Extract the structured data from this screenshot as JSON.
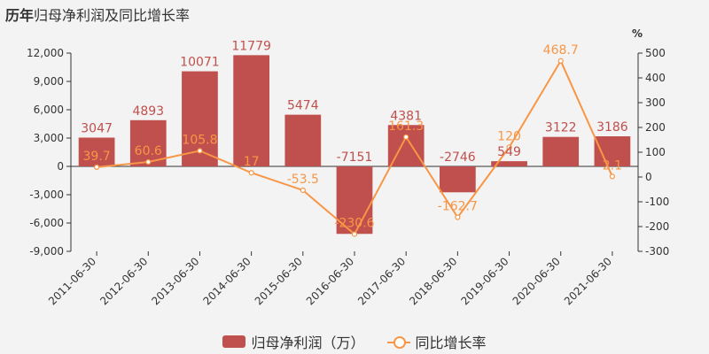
{
  "title": {
    "part1": "历年",
    "part2": "归母净利润",
    "part3": "及同比增长率"
  },
  "right_unit": "%",
  "legend": {
    "bar": "归母净利润（万）",
    "line": "同比增长率"
  },
  "colors": {
    "bar": "#c0504d",
    "line": "#f79646",
    "bar_label": "#c0504d",
    "line_label": "#f79646"
  },
  "chart_data": {
    "type": "bar",
    "categories": [
      "2011-06-30",
      "2012-06-30",
      "2013-06-30",
      "2014-06-30",
      "2015-06-30",
      "2016-06-30",
      "2017-06-30",
      "2018-06-30",
      "2019-06-30",
      "2020-06-30",
      "2021-06-30"
    ],
    "series": [
      {
        "name": "归母净利润（万）",
        "type": "bar",
        "axis": "left",
        "values": [
          3047,
          4893,
          10071,
          11779,
          5474,
          -7151,
          4381,
          -2746,
          549,
          3122,
          3186
        ]
      },
      {
        "name": "同比增长率",
        "type": "line",
        "axis": "right",
        "values": [
          39.7,
          60.6,
          105.8,
          17,
          -53.5,
          -230.6,
          161.3,
          -162.7,
          120,
          468.7,
          2.1
        ]
      }
    ],
    "left_axis": {
      "ylim": [
        -9000,
        12000
      ],
      "ticks": [
        "12,000",
        "9,000",
        "6,000",
        "3,000",
        "0",
        "-3,000",
        "-6,000",
        "-9,000"
      ],
      "tick_values": [
        12000,
        9000,
        6000,
        3000,
        0,
        -3000,
        -6000,
        -9000
      ]
    },
    "right_axis": {
      "ylim": [
        -300,
        500
      ],
      "ticks": [
        "500",
        "400",
        "300",
        "200",
        "100",
        "0",
        "-100",
        "-200",
        "-300"
      ],
      "tick_values": [
        500,
        400,
        300,
        200,
        100,
        0,
        -100,
        -200,
        -300
      ]
    },
    "grid": false,
    "legend_position": "bottom"
  }
}
